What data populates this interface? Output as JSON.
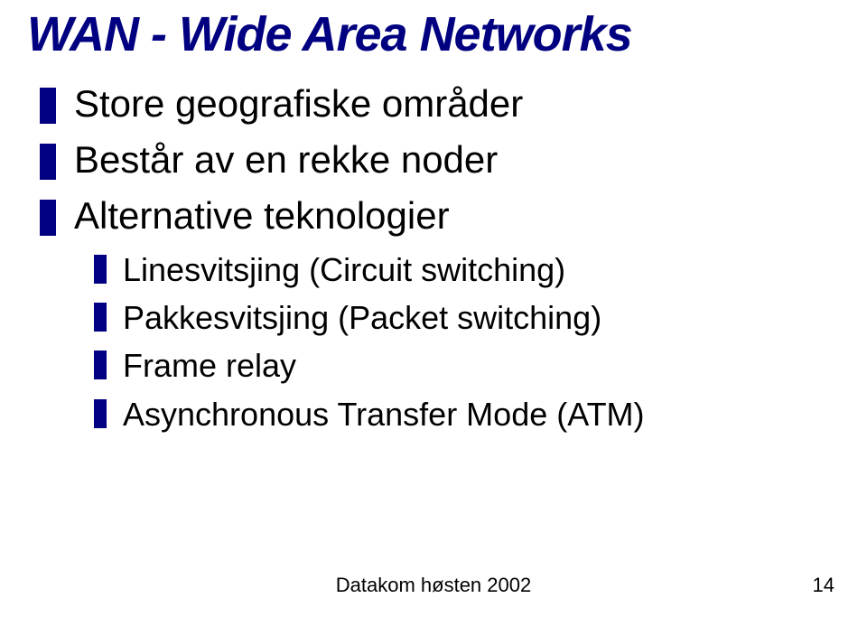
{
  "slide": {
    "title": {
      "text": "WAN - Wide Area Networks",
      "fontsize": 54,
      "color": "#000080",
      "weight": 900,
      "italic": true
    },
    "bullets_level1_fontsize": 42,
    "bullets_level2_fontsize": 36,
    "bullet_color": "#000080",
    "text_color": "#000000",
    "background_color": "#ffffff",
    "items": [
      {
        "level": 1,
        "text": "Store geografiske områder"
      },
      {
        "level": 1,
        "text": "Består av en rekke noder"
      },
      {
        "level": 1,
        "text": "Alternative teknologier"
      },
      {
        "level": 2,
        "text": "Linesvitsjing (Circuit switching)"
      },
      {
        "level": 2,
        "text": "Pakkesvitsjing (Packet switching)"
      },
      {
        "level": 2,
        "text": "Frame relay"
      },
      {
        "level": 2,
        "text": "Asynchronous Transfer Mode (ATM)"
      }
    ],
    "footer": {
      "text": "Datakom høsten 2002",
      "fontsize": 22
    },
    "page_number": {
      "text": "14",
      "fontsize": 22
    }
  }
}
